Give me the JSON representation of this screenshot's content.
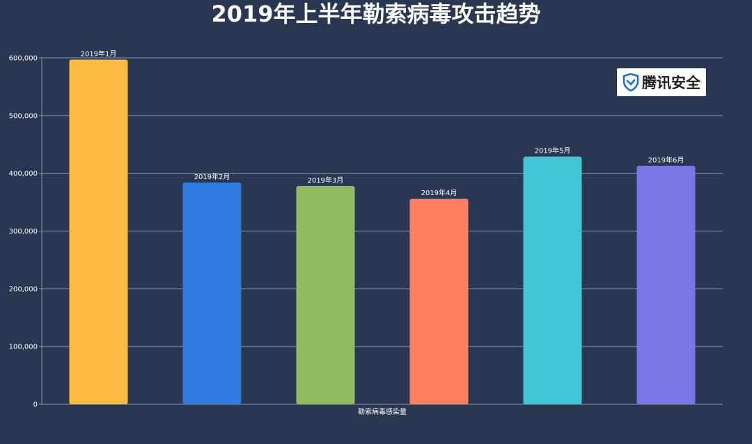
{
  "chart_data": {
    "type": "bar",
    "title": "2019年上半年勒索病毒攻击趋势",
    "categories": [
      "2019年1月",
      "2019年2月",
      "2019年3月",
      "2019年4月",
      "2019年5月",
      "2019年6月"
    ],
    "values": [
      597000,
      384000,
      378000,
      356000,
      429000,
      413000
    ],
    "bar_colors": [
      "#FBBA40",
      "#307BE2",
      "#8FBC5F",
      "#FF7E5E",
      "#3FC7D5",
      "#7B75E6"
    ],
    "xlabel": "勒索病毒感染量",
    "ylabel": "",
    "ylim": [
      0,
      600000
    ],
    "yticks": [
      "0",
      "100,000",
      "200,000",
      "300,000",
      "400,000",
      "500,000",
      "600,000"
    ],
    "grid": true
  },
  "logo": {
    "text": "腾讯安全",
    "icon": "shield-check-icon"
  }
}
